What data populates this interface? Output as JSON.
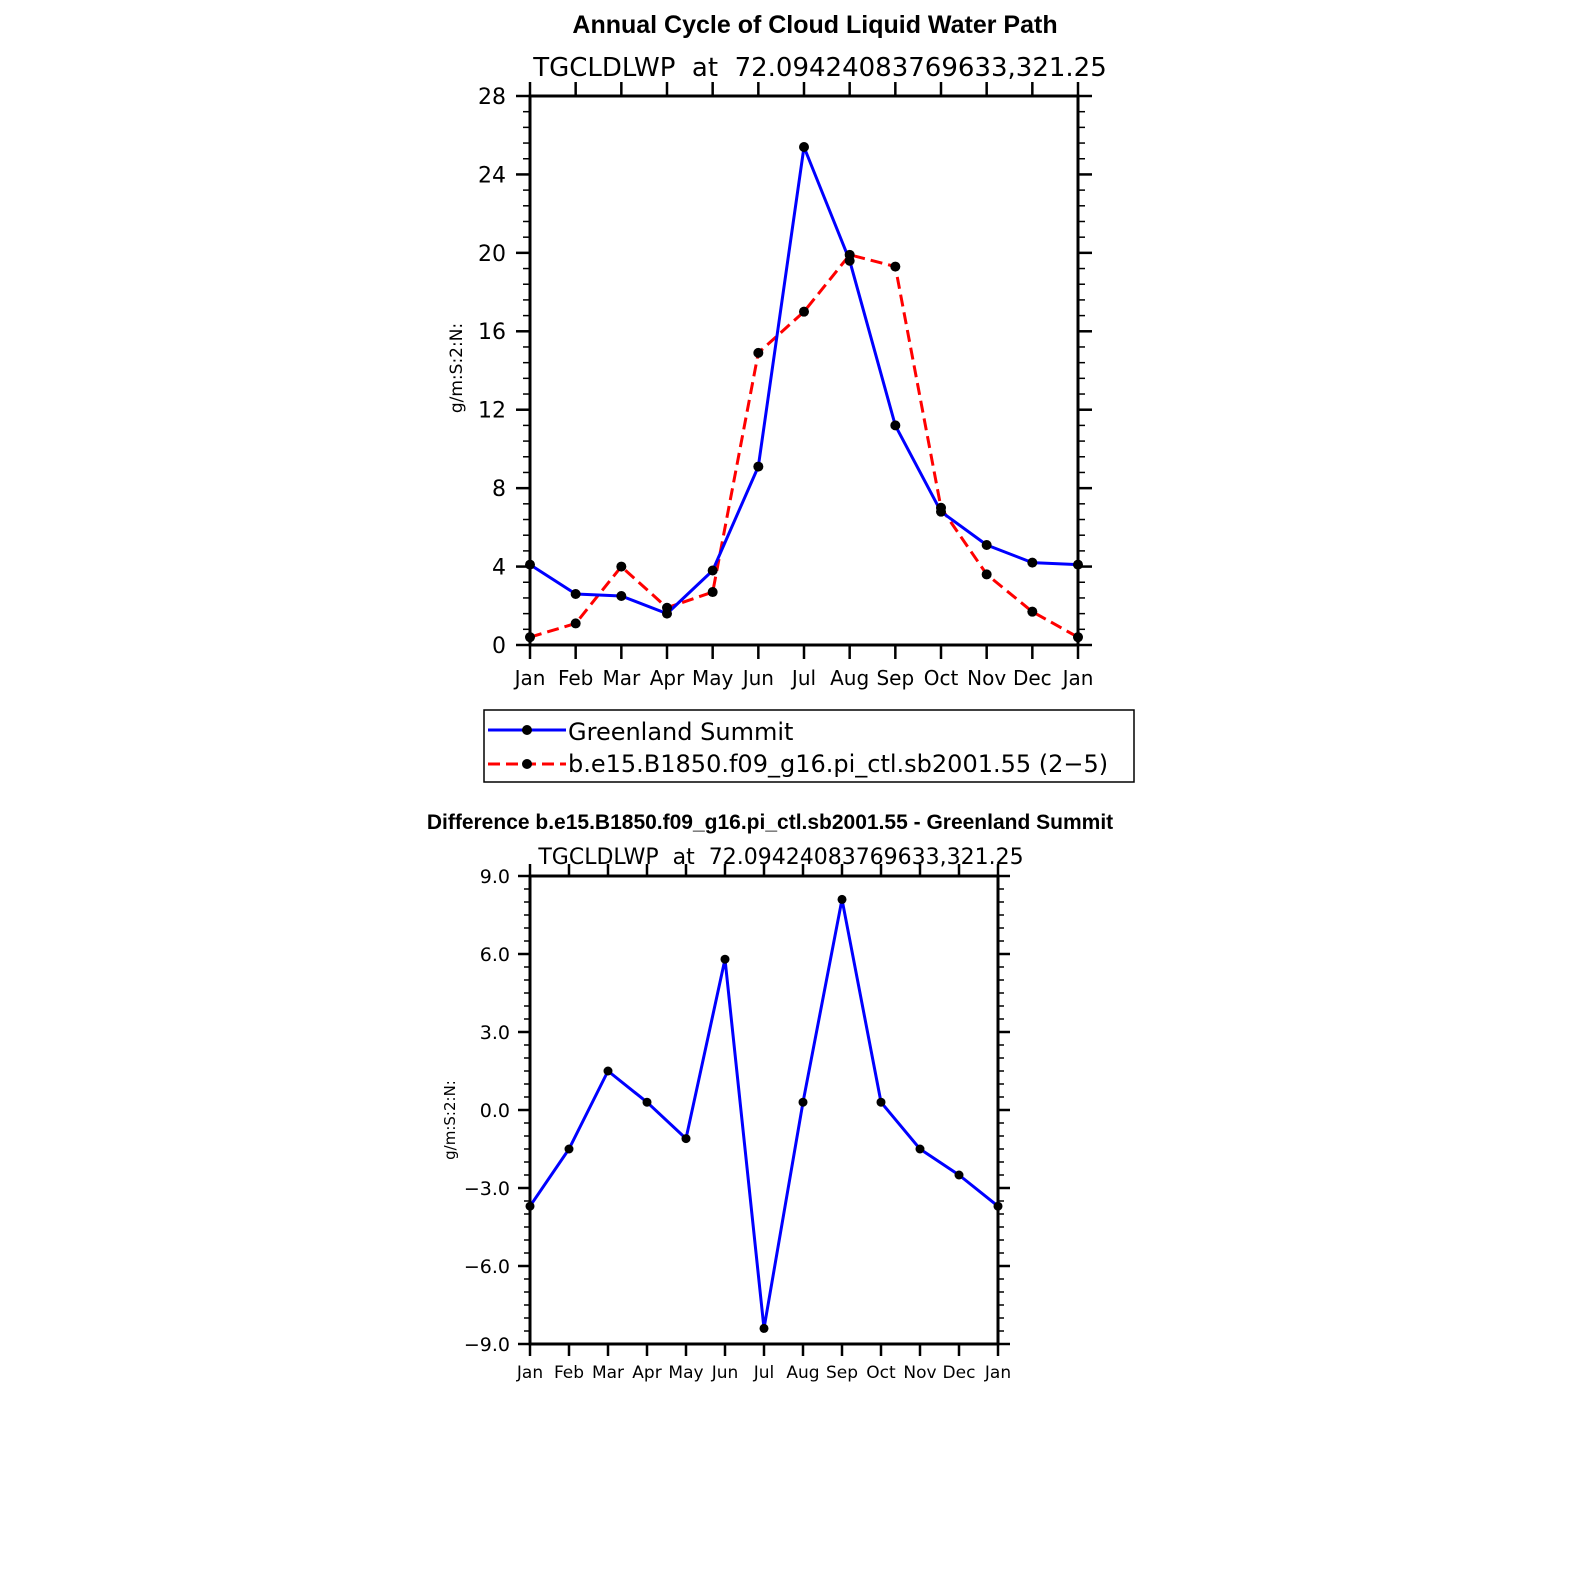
{
  "chart_data": [
    {
      "type": "line",
      "title": "Annual Cycle of Cloud Liquid Water Path",
      "subtitle": "TGCLDLWP  at  72.09424083769633,321.25",
      "xlabel": "",
      "ylabel": "g/m:S:2:N:",
      "categories": [
        "Jan",
        "Feb",
        "Mar",
        "Apr",
        "May",
        "Jun",
        "Jul",
        "Aug",
        "Sep",
        "Oct",
        "Nov",
        "Dec",
        "Jan"
      ],
      "ylim": [
        0,
        28
      ],
      "yticks": [
        0,
        4,
        8,
        12,
        16,
        20,
        24,
        28
      ],
      "ytick_labels": [
        "0",
        "4",
        "8",
        "12",
        "16",
        "20",
        "24",
        "28"
      ],
      "grid": false,
      "legend_position": "bottom",
      "series": [
        {
          "name": "Greenland Summit",
          "color": "#0000ff",
          "dash": "solid",
          "values": [
            4.1,
            2.6,
            2.5,
            1.6,
            3.8,
            9.1,
            25.4,
            19.6,
            11.2,
            6.8,
            5.1,
            4.2,
            4.1
          ]
        },
        {
          "name": "b.e15.B1850.f09_g16.pi_ctl.sb2001.55 (2−5)",
          "color": "#ff0000",
          "dash": "dashed",
          "values": [
            0.4,
            1.1,
            4.0,
            1.9,
            2.7,
            14.9,
            17.0,
            19.9,
            19.3,
            7.0,
            3.6,
            1.7,
            0.4
          ]
        }
      ]
    },
    {
      "type": "line",
      "title": "Difference b.e15.B1850.f09_g16.pi_ctl.sb2001.55 - Greenland Summit",
      "subtitle": "TGCLDLWP  at  72.09424083769633,321.25",
      "xlabel": "",
      "ylabel": "g/m:S:2:N:",
      "categories": [
        "Jan",
        "Feb",
        "Mar",
        "Apr",
        "May",
        "Jun",
        "Jul",
        "Aug",
        "Sep",
        "Oct",
        "Nov",
        "Dec",
        "Jan"
      ],
      "ylim": [
        -9,
        9
      ],
      "yticks": [
        -9,
        -6,
        -3,
        0,
        3,
        6,
        9
      ],
      "ytick_labels": [
        "−9.0",
        "−6.0",
        "−3.0",
        "0.0",
        "3.0",
        "6.0",
        "9.0"
      ],
      "grid": false,
      "series": [
        {
          "name": "Difference",
          "color": "#0000ff",
          "dash": "solid",
          "values": [
            -3.7,
            -1.5,
            1.5,
            0.3,
            -1.1,
            5.8,
            -8.4,
            0.3,
            8.1,
            0.3,
            -1.5,
            -2.5,
            -3.7
          ]
        }
      ]
    }
  ]
}
